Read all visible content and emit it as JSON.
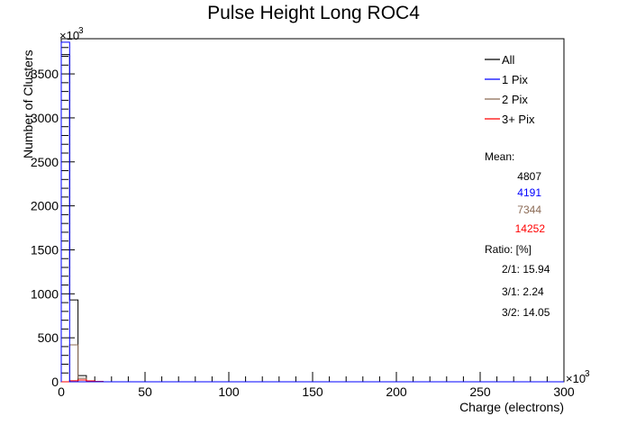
{
  "chart_data": {
    "type": "bar",
    "title": "Pulse Height Long ROC4",
    "xlabel": "Charge (electrons)",
    "ylabel": "Number of Clusters",
    "x_exponent": "×10",
    "x_exponent_power": "3",
    "y_exponent": "×10",
    "y_exponent_power": "3",
    "xlim": [
      0,
      300
    ],
    "ylim": [
      0,
      3900
    ],
    "x_ticks": [
      0,
      50,
      100,
      150,
      200,
      250,
      300
    ],
    "y_ticks": [
      0,
      500,
      1000,
      1500,
      2000,
      2500,
      3000,
      3500
    ],
    "bin_width": 5,
    "legend_position": "top-right",
    "series": [
      {
        "name": "All",
        "color": "#000000",
        "values": [
          3720,
          930,
          70,
          10,
          3
        ]
      },
      {
        "name": "1 Pix",
        "color": "#0000ff",
        "values": [
          3860,
          0,
          0,
          0,
          0
        ]
      },
      {
        "name": "2 Pix",
        "color": "#8b6a55",
        "values": [
          0,
          420,
          40,
          5,
          2
        ]
      },
      {
        "name": "3+ Pix",
        "color": "#ff0000",
        "values": [
          0,
          12,
          20,
          10,
          4
        ]
      }
    ],
    "stats": {
      "mean_label": "Mean:",
      "means": [
        {
          "value": "4807",
          "color": "#000000"
        },
        {
          "value": "4191",
          "color": "#0000ff"
        },
        {
          "value": "7344",
          "color": "#8b6a55"
        },
        {
          "value": "14252",
          "color": "#ff0000"
        }
      ],
      "ratio_label": "Ratio: [%]",
      "ratios": [
        "2/1: 15.94",
        "3/1: 2.24",
        "3/2: 14.05"
      ]
    }
  }
}
